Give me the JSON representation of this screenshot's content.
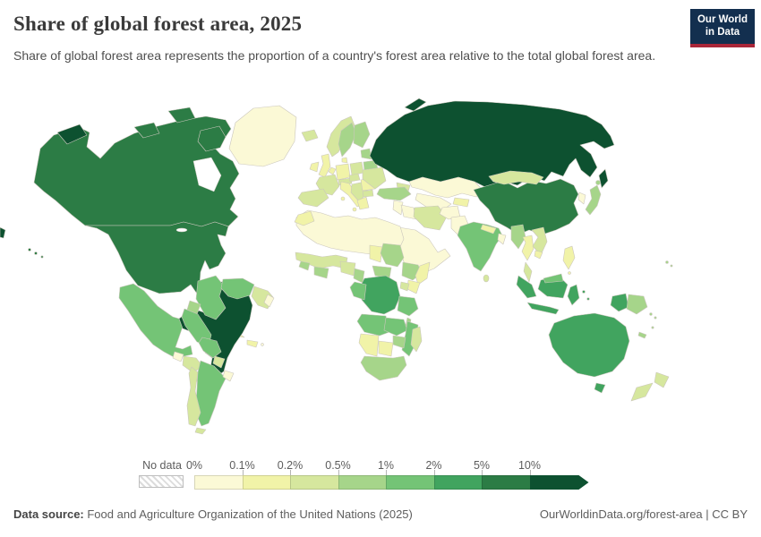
{
  "header": {
    "title": "Share of global forest area, 2025",
    "subtitle": "Share of global forest area represents the proportion of a country's forest area relative to the total global forest area.",
    "logo": {
      "line1": "Our World",
      "line2": "in Data"
    }
  },
  "footer": {
    "source_label": "Data source:",
    "source_text": " Food and Agriculture Organization of the United Nations (2025)",
    "right_text": "OurWorldinData.org/forest-area | CC BY"
  },
  "colors": {
    "logo_navy": "#132f4f",
    "logo_red": "#aa2639",
    "country_border": "#cbc7bd"
  },
  "chart_data": {
    "type": "heatmap",
    "subtype": "choropleth-world-map",
    "title": "Share of global forest area, 2025",
    "unit": "%",
    "legend": {
      "no_data_label": "No data",
      "tick_labels": [
        "0%",
        "0.1%",
        "0.2%",
        "0.5%",
        "1%",
        "2%",
        "5%",
        "10%"
      ],
      "bin_ranges": [
        "0-0.1%",
        "0.1-0.2%",
        "0.2-0.5%",
        "0.5-1%",
        "1-2%",
        "2-5%",
        "5-10%",
        ">10%"
      ],
      "colors": [
        "#fbf9d6",
        "#f1f3a8",
        "#d6e79e",
        "#a6d58a",
        "#74c476",
        "#41a45f",
        "#2c7c45",
        "#0d5130"
      ]
    },
    "regions": [
      {
        "name": "russia",
        "bin": 7
      },
      {
        "name": "brazil",
        "bin": 7
      },
      {
        "name": "canada",
        "bin": 6
      },
      {
        "name": "united-states",
        "bin": 6
      },
      {
        "name": "china",
        "bin": 6
      },
      {
        "name": "democratic-republic-of-congo",
        "bin": 5
      },
      {
        "name": "indonesia",
        "bin": 5
      },
      {
        "name": "australia",
        "bin": 5
      },
      {
        "name": "mexico",
        "bin": 4
      },
      {
        "name": "colombia",
        "bin": 4
      },
      {
        "name": "venezuela",
        "bin": 4
      },
      {
        "name": "peru",
        "bin": 4
      },
      {
        "name": "bolivia",
        "bin": 4
      },
      {
        "name": "argentina",
        "bin": 4
      },
      {
        "name": "india",
        "bin": 4
      },
      {
        "name": "angola",
        "bin": 4
      },
      {
        "name": "zambia",
        "bin": 4
      },
      {
        "name": "tanzania",
        "bin": 4
      },
      {
        "name": "mozambique",
        "bin": 4
      },
      {
        "name": "congo-gabon",
        "bin": 4
      },
      {
        "name": "malaysia",
        "bin": 4
      },
      {
        "name": "sweden",
        "bin": 3
      },
      {
        "name": "finland",
        "bin": 3
      },
      {
        "name": "baltics",
        "bin": 3
      },
      {
        "name": "belarus",
        "bin": 3
      },
      {
        "name": "japan",
        "bin": 3
      },
      {
        "name": "myanmar",
        "bin": 3
      },
      {
        "name": "papua-new-guinea",
        "bin": 3
      },
      {
        "name": "sudan",
        "bin": 3
      },
      {
        "name": "ethiopia",
        "bin": 3
      },
      {
        "name": "central-african-republic",
        "bin": 3
      },
      {
        "name": "zimbabwe",
        "bin": 3
      },
      {
        "name": "south-africa",
        "bin": 3
      },
      {
        "name": "turkey",
        "bin": 3
      },
      {
        "name": "ecuador",
        "bin": 3
      },
      {
        "name": "costa-rica-panama",
        "bin": 3
      },
      {
        "name": "guinea",
        "bin": 3
      },
      {
        "name": "ghana-ivory-coast",
        "bin": 3
      },
      {
        "name": "cameroon",
        "bin": 3
      },
      {
        "name": "malawi",
        "bin": 3
      },
      {
        "name": "solomon-islands",
        "bin": 3
      },
      {
        "name": "fiji",
        "bin": 3
      },
      {
        "name": "new-caledonia",
        "bin": 3
      },
      {
        "name": "vanuatu",
        "bin": 3
      },
      {
        "name": "norway",
        "bin": 2
      },
      {
        "name": "iceland",
        "bin": 2
      },
      {
        "name": "france",
        "bin": 2
      },
      {
        "name": "iberia",
        "bin": 2
      },
      {
        "name": "poland",
        "bin": 2
      },
      {
        "name": "central-europe",
        "bin": 2
      },
      {
        "name": "balkans",
        "bin": 2
      },
      {
        "name": "bulgaria",
        "bin": 2
      },
      {
        "name": "ukraine",
        "bin": 2
      },
      {
        "name": "iran",
        "bin": 2
      },
      {
        "name": "mongolia",
        "bin": 2
      },
      {
        "name": "new-zealand",
        "bin": 2
      },
      {
        "name": "chile",
        "bin": 2
      },
      {
        "name": "paraguay",
        "bin": 2
      },
      {
        "name": "madagascar",
        "bin": 2
      },
      {
        "name": "honduras-nicaragua",
        "bin": 2
      },
      {
        "name": "guyana-suriname",
        "bin": 2
      },
      {
        "name": "laos-vietnam",
        "bin": 2
      },
      {
        "name": "malay-peninsula",
        "bin": 2
      },
      {
        "name": "sri-lanka",
        "bin": 2
      },
      {
        "name": "west-africa",
        "bin": 2
      },
      {
        "name": "nigeria",
        "bin": 2
      },
      {
        "name": "caucasus",
        "bin": 2
      },
      {
        "name": "uganda",
        "bin": 2
      },
      {
        "name": "jamaica",
        "bin": 2
      },
      {
        "name": "united-kingdom",
        "bin": 1
      },
      {
        "name": "ireland",
        "bin": 1
      },
      {
        "name": "germany",
        "bin": 1
      },
      {
        "name": "denmark",
        "bin": 1
      },
      {
        "name": "benelux",
        "bin": 1
      },
      {
        "name": "italy",
        "bin": 1
      },
      {
        "name": "greece",
        "bin": 1
      },
      {
        "name": "romania",
        "bin": 1
      },
      {
        "name": "cuba",
        "bin": 1
      },
      {
        "name": "hispaniola",
        "bin": 1
      },
      {
        "name": "chad",
        "bin": 1
      },
      {
        "name": "somalia",
        "bin": 1
      },
      {
        "name": "kenya",
        "bin": 1
      },
      {
        "name": "namibia",
        "bin": 1
      },
      {
        "name": "botswana",
        "bin": 1
      },
      {
        "name": "thailand",
        "bin": 1
      },
      {
        "name": "cambodia",
        "bin": 1
      },
      {
        "name": "philippines",
        "bin": 1
      },
      {
        "name": "nepal",
        "bin": 1
      },
      {
        "name": "kyrgyzstan-tajikistan",
        "bin": 1
      },
      {
        "name": "morocco",
        "bin": 1
      },
      {
        "name": "greenland",
        "bin": 0
      },
      {
        "name": "north-africa",
        "bin": 0
      },
      {
        "name": "kazakhstan",
        "bin": 0
      },
      {
        "name": "central-asia",
        "bin": 0
      },
      {
        "name": "arabia",
        "bin": 0
      },
      {
        "name": "iraq",
        "bin": 0
      },
      {
        "name": "levant",
        "bin": 0
      },
      {
        "name": "afghanistan",
        "bin": 0
      },
      {
        "name": "pakistan",
        "bin": 0
      },
      {
        "name": "bangladesh",
        "bin": 0
      },
      {
        "name": "south-korea",
        "bin": 0
      },
      {
        "name": "guatemala",
        "bin": 0
      },
      {
        "name": "uruguay",
        "bin": 0
      },
      {
        "name": "french-guiana",
        "bin": 0
      },
      {
        "name": "bahamas",
        "bin": 0
      },
      {
        "name": "puerto-rico",
        "bin": 0
      }
    ]
  }
}
